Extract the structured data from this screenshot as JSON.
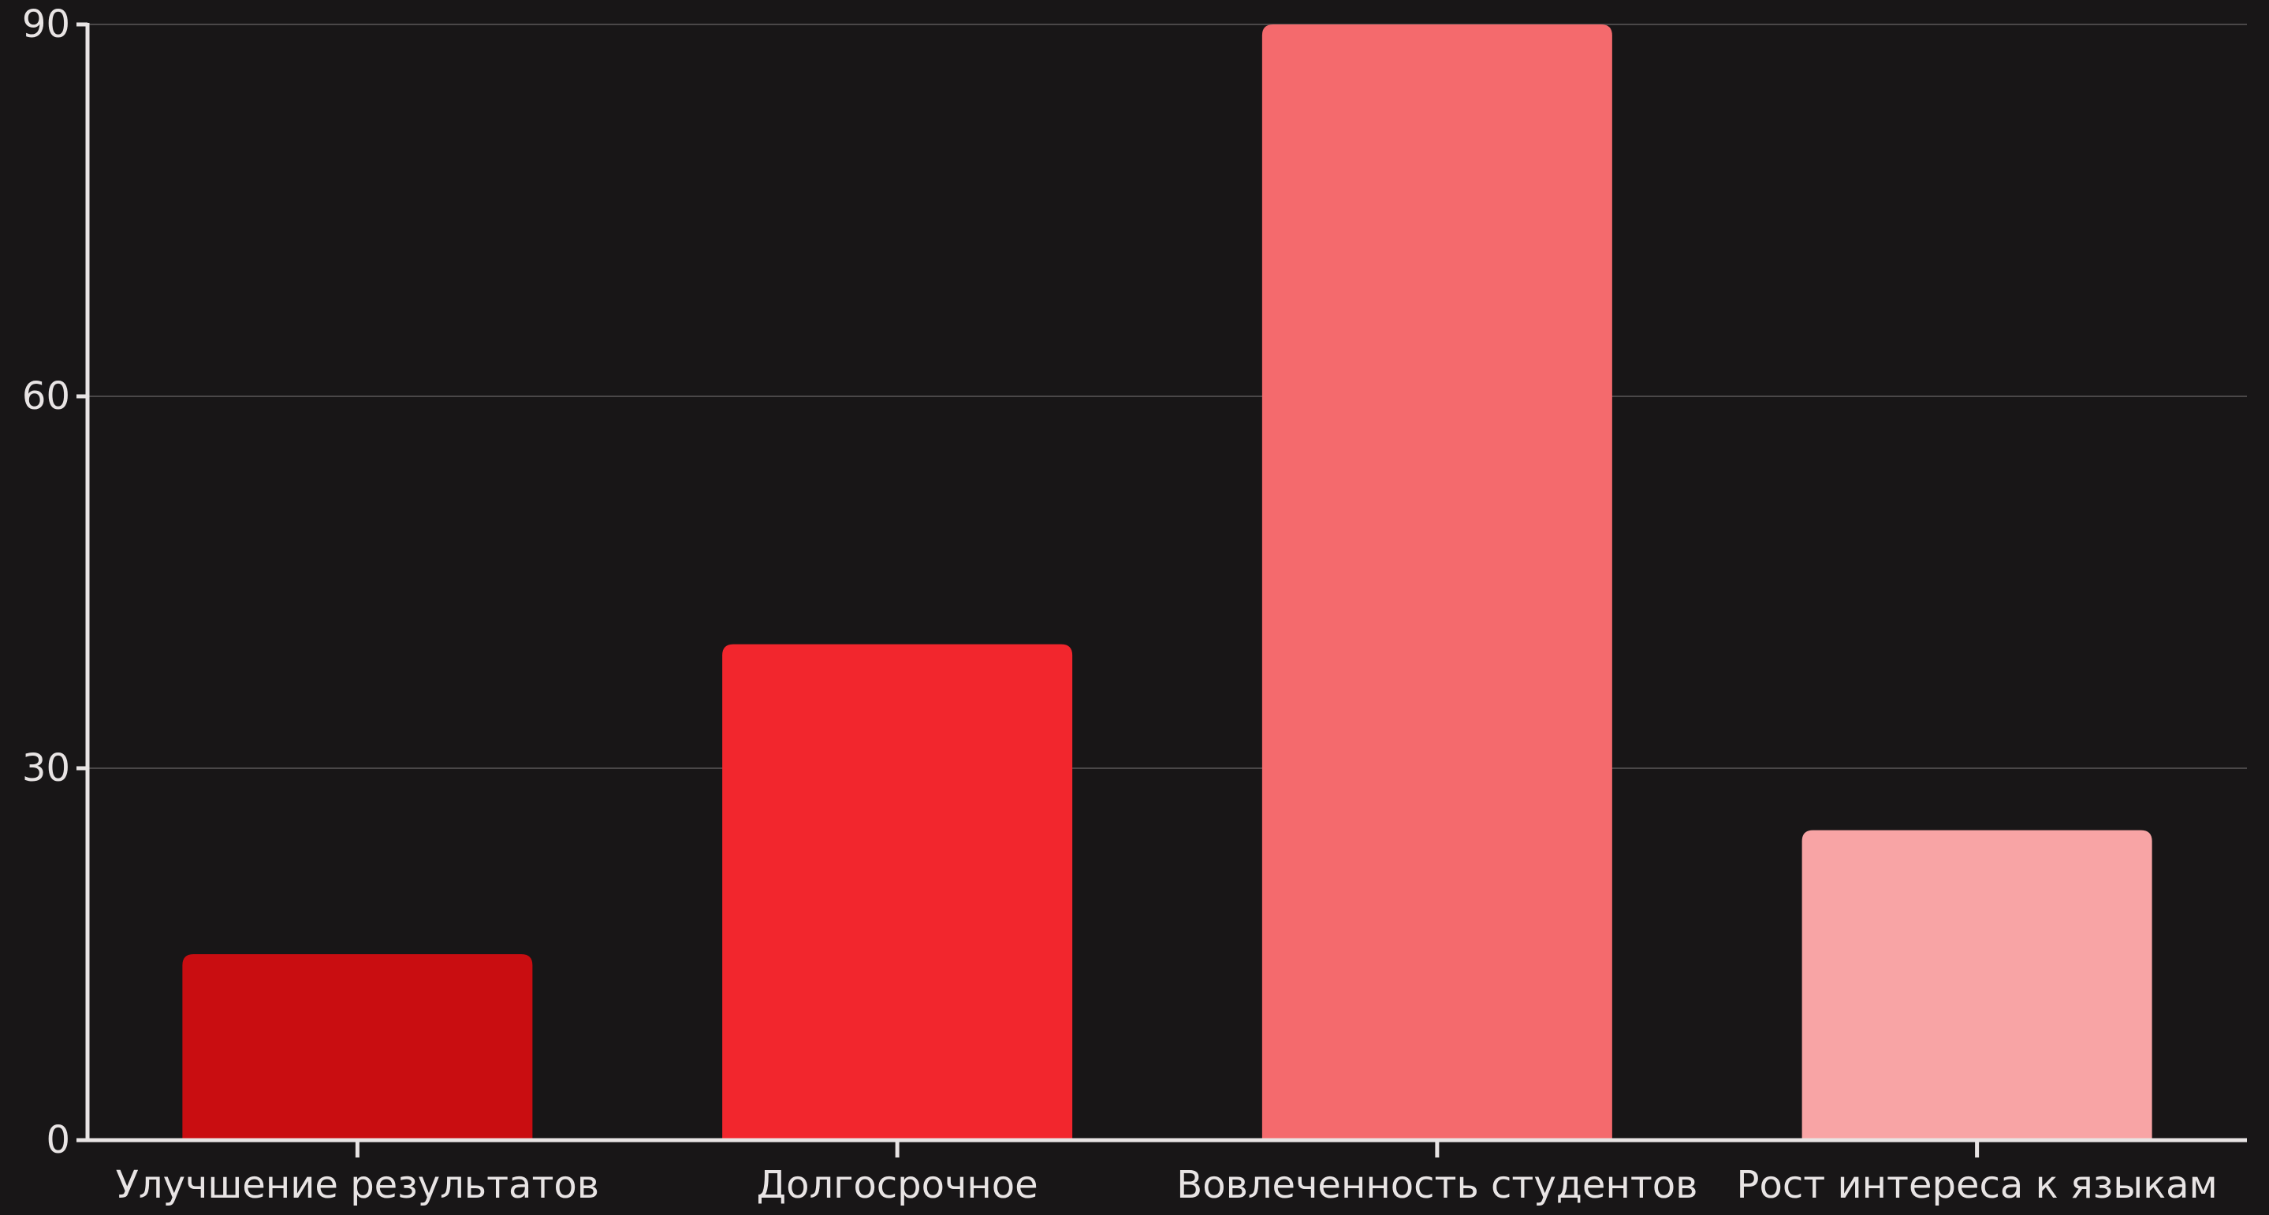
{
  "chart_data": {
    "type": "bar",
    "title": "",
    "xlabel": "",
    "ylabel": "",
    "categories": [
      "Улучшение результатов",
      "Долгосрочное",
      "Вовлеченность студентов",
      "Рост интереса к языкам"
    ],
    "values": [
      15,
      40,
      90,
      25
    ],
    "colors": [
      "#c90d11",
      "#f2262d",
      "#f46a6d",
      "#f8a4a5"
    ],
    "ylim": [
      0,
      90
    ],
    "yticks": [
      0,
      30,
      60,
      90
    ],
    "ytick_labels": [
      "0",
      "30",
      "60",
      "90"
    ],
    "grid": true,
    "legend": "none"
  },
  "theme": {
    "background": "#181617",
    "axis_color": "#e8e4e4",
    "grid_color": "#4a4748",
    "text_color": "#e8e4e4"
  }
}
